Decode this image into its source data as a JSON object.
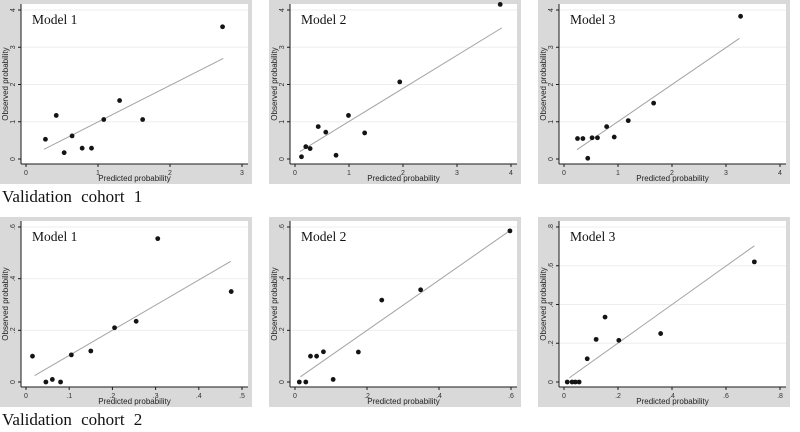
{
  "style": {
    "outer_bg": "#d9d9d9",
    "plot_bg": "#ffffff",
    "grid_color": "#eeeeee",
    "axis_color": "#1a1a1a",
    "tick_text_color": "#333333",
    "label_text_color": "#222222",
    "point_color": "#141414",
    "ref_line_color": "#a3a3a3",
    "title_color": "#111111"
  },
  "captions": [
    {
      "label": "Validation cohort 1"
    },
    {
      "label": "Validation cohort 2"
    }
  ],
  "chart_data": [
    {
      "type": "scatter",
      "title": "Model 1",
      "xlabel": "Predicted probability",
      "ylabel": "Observed probability",
      "xlim": [
        0,
        3
      ],
      "ylim": [
        0,
        4
      ],
      "xticks": [
        0,
        1,
        2,
        3
      ],
      "xtick_labels": [
        "0",
        "1",
        "2",
        "3"
      ],
      "yticks": [
        0,
        1,
        2,
        3,
        4
      ],
      "ytick_labels": [
        "0",
        "1",
        "2",
        "3",
        "4"
      ],
      "points": [
        [
          0.27,
          0.53
        ],
        [
          0.42,
          1.17
        ],
        [
          0.53,
          0.17
        ],
        [
          0.64,
          0.62
        ],
        [
          0.78,
          0.29
        ],
        [
          0.91,
          0.29
        ],
        [
          1.08,
          1.06
        ],
        [
          1.3,
          1.57
        ],
        [
          1.62,
          1.06
        ],
        [
          2.73,
          3.55
        ]
      ],
      "ref_line": [
        [
          0.25,
          0.26
        ],
        [
          2.74,
          2.7
        ]
      ]
    },
    {
      "type": "scatter",
      "title": "Model 2",
      "xlabel": "Predicted probability",
      "ylabel": "Observed probability",
      "xlim": [
        0,
        4
      ],
      "ylim": [
        0,
        4
      ],
      "xticks": [
        0,
        1,
        2,
        3,
        4
      ],
      "xtick_labels": [
        "0",
        "1",
        "2",
        "3",
        "4"
      ],
      "yticks": [
        0,
        1,
        2,
        3,
        4
      ],
      "ytick_labels": [
        "0",
        "1",
        "2",
        "3",
        "4"
      ],
      "points": [
        [
          0.12,
          0.06
        ],
        [
          0.2,
          0.33
        ],
        [
          0.28,
          0.28
        ],
        [
          0.43,
          0.87
        ],
        [
          0.57,
          0.72
        ],
        [
          0.76,
          0.1
        ],
        [
          0.99,
          1.17
        ],
        [
          1.29,
          0.7
        ],
        [
          1.94,
          2.07
        ],
        [
          3.8,
          4.15
        ]
      ],
      "ref_line": [
        [
          0.09,
          0.2
        ],
        [
          3.83,
          3.52
        ]
      ]
    },
    {
      "type": "scatter",
      "title": "Model 3",
      "xlabel": "Predicted probability",
      "ylabel": "Observed probability",
      "xlim": [
        0,
        4
      ],
      "ylim": [
        0,
        4
      ],
      "xticks": [
        0,
        1,
        2,
        3,
        4
      ],
      "xtick_labels": [
        "0",
        "1",
        "2",
        "3",
        "4"
      ],
      "yticks": [
        0,
        1,
        2,
        3,
        4
      ],
      "ytick_labels": [
        "0",
        "1",
        "2",
        "3",
        "4"
      ],
      "points": [
        [
          0.25,
          0.55
        ],
        [
          0.35,
          0.55
        ],
        [
          0.44,
          0.02
        ],
        [
          0.52,
          0.57
        ],
        [
          0.62,
          0.57
        ],
        [
          0.79,
          0.87
        ],
        [
          0.93,
          0.59
        ],
        [
          1.19,
          1.03
        ],
        [
          1.66,
          1.5
        ],
        [
          3.27,
          3.83
        ]
      ],
      "ref_line": [
        [
          0.24,
          0.25
        ],
        [
          3.25,
          3.24
        ]
      ]
    },
    {
      "type": "scatter",
      "title": "Model 1",
      "xlabel": "Predicted probability",
      "ylabel": "Observed probability",
      "xlim": [
        0,
        0.5
      ],
      "ylim": [
        0,
        0.6
      ],
      "xticks": [
        0,
        0.1,
        0.2,
        0.3,
        0.4,
        0.5
      ],
      "xtick_labels": [
        "0",
        ".1",
        ".2",
        ".3",
        ".4",
        ".5"
      ],
      "yticks": [
        0,
        0.2,
        0.4,
        0.6
      ],
      "ytick_labels": [
        "0",
        ".2",
        ".4",
        ".6"
      ],
      "points": [
        [
          0.015,
          0.1
        ],
        [
          0.046,
          0.0
        ],
        [
          0.061,
          0.01
        ],
        [
          0.08,
          0.0
        ],
        [
          0.105,
          0.105
        ],
        [
          0.15,
          0.12
        ],
        [
          0.205,
          0.21
        ],
        [
          0.255,
          0.235
        ],
        [
          0.305,
          0.555
        ],
        [
          0.475,
          0.35
        ]
      ],
      "ref_line": [
        [
          0.02,
          0.025
        ],
        [
          0.474,
          0.467
        ]
      ]
    },
    {
      "type": "scatter",
      "title": "Model 2",
      "xlabel": "Predicted probability",
      "ylabel": "Observed probability",
      "xlim": [
        0,
        0.6
      ],
      "ylim": [
        0,
        0.6
      ],
      "xticks": [
        0,
        0.2,
        0.4,
        0.6
      ],
      "xtick_labels": [
        "0",
        ".2",
        ".4",
        ".6"
      ],
      "yticks": [
        0,
        0.2,
        0.4,
        0.6
      ],
      "ytick_labels": [
        "0",
        ".2",
        ".4",
        ".6"
      ],
      "points": [
        [
          0.012,
          0.0
        ],
        [
          0.03,
          0.0
        ],
        [
          0.043,
          0.1
        ],
        [
          0.06,
          0.1
        ],
        [
          0.079,
          0.117
        ],
        [
          0.106,
          0.01
        ],
        [
          0.176,
          0.116
        ],
        [
          0.241,
          0.317
        ],
        [
          0.349,
          0.357
        ],
        [
          0.597,
          0.585
        ]
      ],
      "ref_line": [
        [
          0.015,
          0.02
        ],
        [
          0.598,
          0.587
        ]
      ]
    },
    {
      "type": "scatter",
      "title": "Model 3",
      "xlabel": "Predicted probability",
      "ylabel": "Observed probability",
      "xlim": [
        0,
        0.8
      ],
      "ylim": [
        0,
        0.8
      ],
      "xticks": [
        0,
        0.2,
        0.4,
        0.6,
        0.8
      ],
      "xtick_labels": [
        "0",
        ".2",
        ".4",
        ".6",
        ".8"
      ],
      "yticks": [
        0,
        0.2,
        0.4,
        0.6,
        0.8
      ],
      "ytick_labels": [
        "0",
        ".2",
        ".4",
        ".6",
        ".8"
      ],
      "points": [
        [
          0.012,
          0.0
        ],
        [
          0.03,
          0.0
        ],
        [
          0.042,
          0.0
        ],
        [
          0.056,
          0.0
        ],
        [
          0.086,
          0.12
        ],
        [
          0.119,
          0.22
        ],
        [
          0.152,
          0.335
        ],
        [
          0.203,
          0.215
        ],
        [
          0.358,
          0.25
        ],
        [
          0.705,
          0.62
        ]
      ],
      "ref_line": [
        [
          0.02,
          0.022
        ],
        [
          0.705,
          0.703
        ]
      ]
    }
  ]
}
